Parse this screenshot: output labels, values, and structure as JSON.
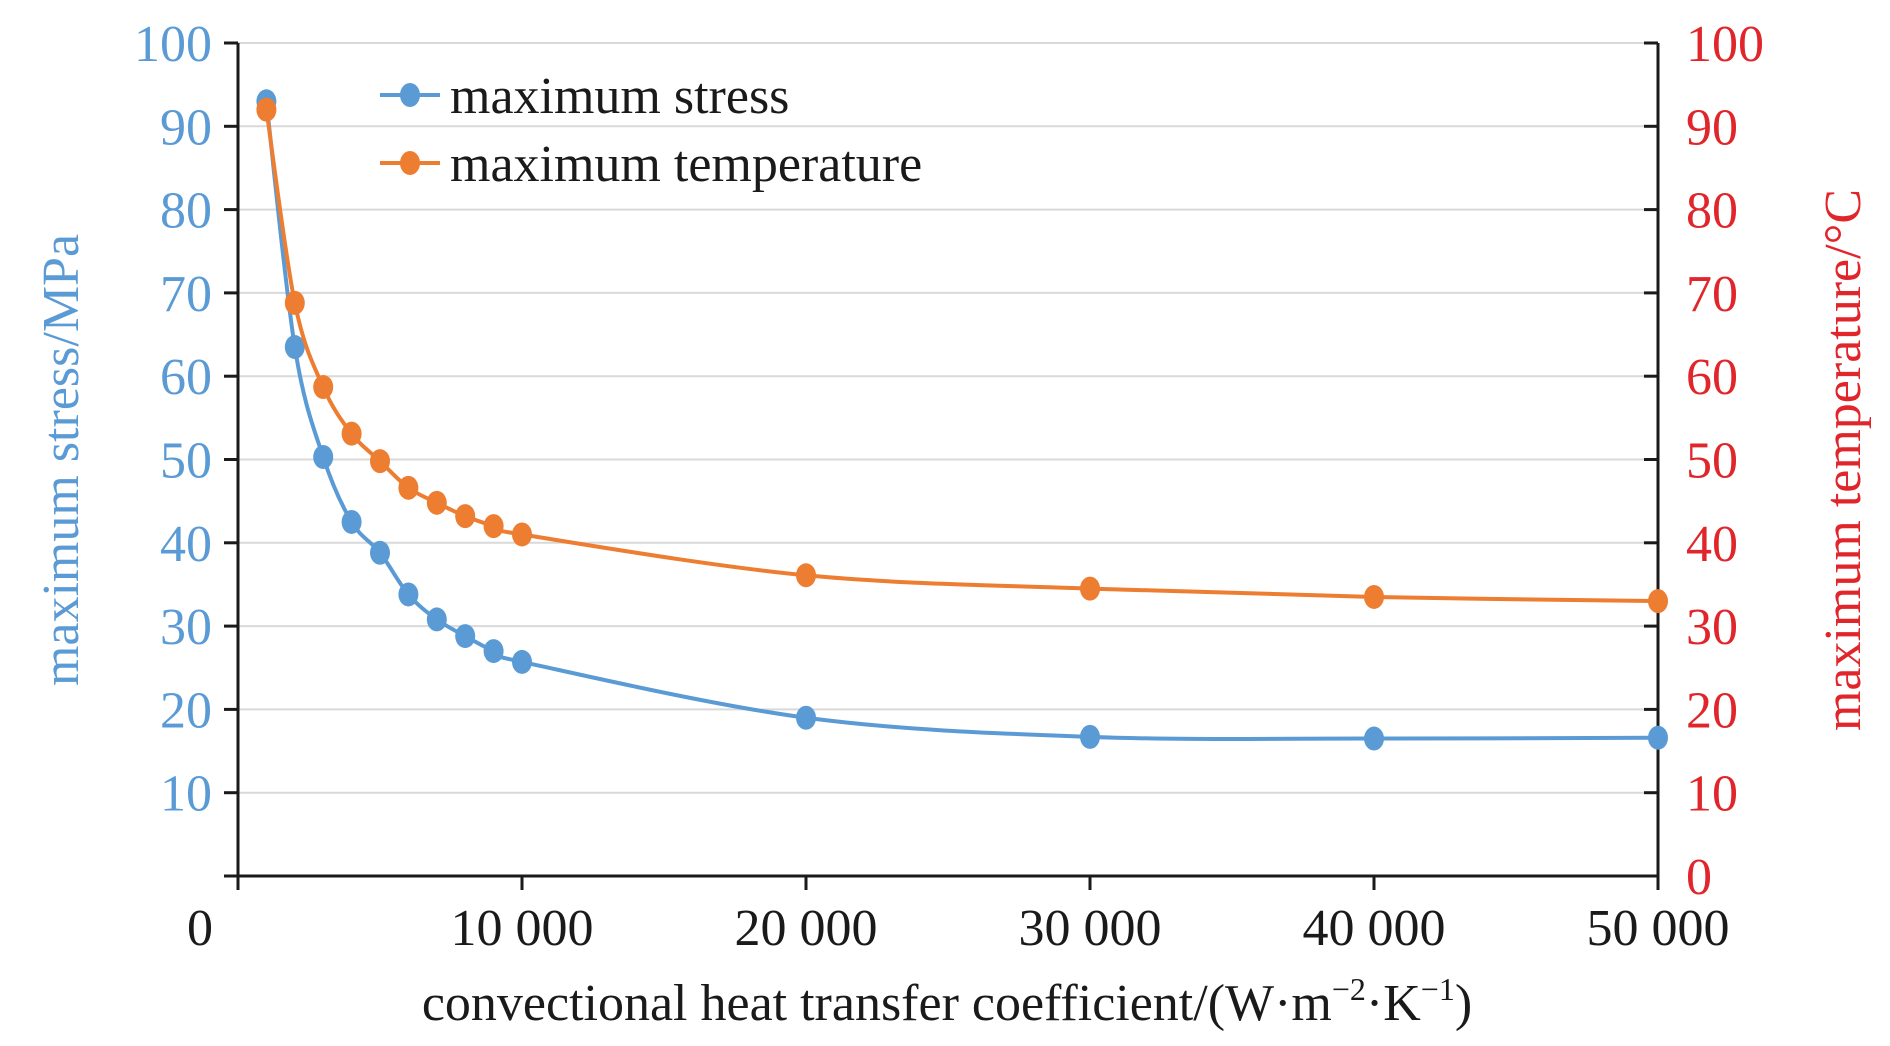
{
  "chart_data": {
    "type": "line",
    "xlabel_main": "convectional heat transfer coefficient/(W·m",
    "xlabel_sup1": "−2",
    "xlabel_mid": "·K",
    "xlabel_sup2": "−1",
    "xlabel_end": ")",
    "ylabel_left": "maximum stress/MPa",
    "ylabel_right": "maximum temperature/°C",
    "xlim": [
      0,
      50000
    ],
    "ylim_left": [
      0,
      100
    ],
    "ylim_right": [
      0,
      100
    ],
    "x_tick_labels": [
      "0",
      "10 000",
      "20 000",
      "30 000",
      "40 000",
      "50 000"
    ],
    "x_ticks": [
      0,
      10000,
      20000,
      30000,
      40000,
      50000
    ],
    "y_left_ticks": [
      "10",
      "20",
      "30",
      "40",
      "50",
      "60",
      "70",
      "80",
      "90",
      "100"
    ],
    "y_right_ticks": [
      "0",
      "10",
      "20",
      "30",
      "40",
      "50",
      "60",
      "70",
      "80",
      "90",
      "100"
    ],
    "grid": "horizontal",
    "legend_position": "top-left",
    "series": [
      {
        "name": "maximum stress",
        "color": "#5b9bd5",
        "axis": "left",
        "x": [
          1000,
          2000,
          3000,
          4000,
          5000,
          6000,
          7000,
          8000,
          9000,
          10000,
          20000,
          30000,
          40000,
          50000
        ],
        "y": [
          93,
          63.5,
          50.3,
          42.5,
          38.8,
          33.8,
          30.8,
          28.8,
          27,
          25.7,
          19,
          16.7,
          16.5,
          16.6
        ]
      },
      {
        "name": "maximum temperature",
        "color": "#ed7d31",
        "axis": "right",
        "x": [
          1000,
          2000,
          3000,
          4000,
          5000,
          6000,
          7000,
          8000,
          9000,
          10000,
          20000,
          30000,
          40000,
          50000
        ],
        "y": [
          92,
          68.8,
          58.7,
          53.1,
          49.8,
          46.6,
          44.8,
          43.2,
          42,
          41,
          36.1,
          34.5,
          33.5,
          33
        ]
      }
    ]
  }
}
